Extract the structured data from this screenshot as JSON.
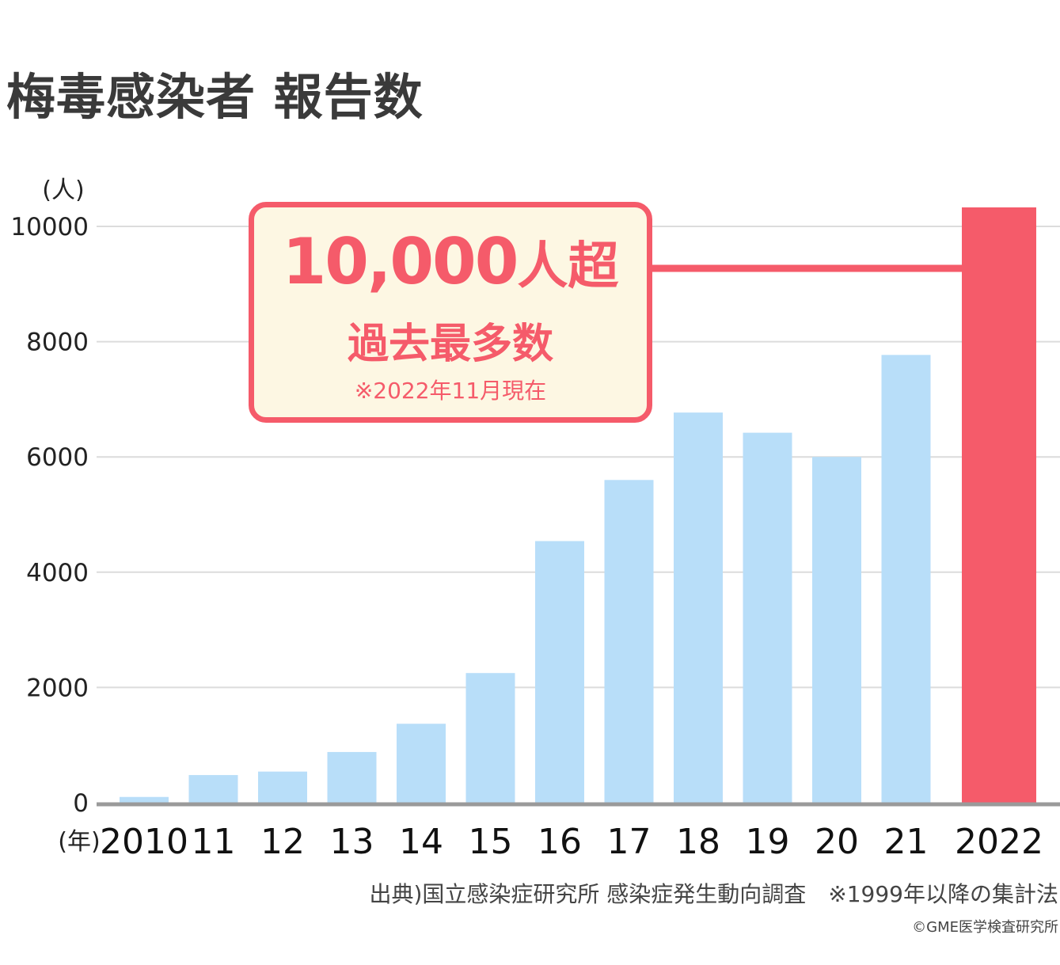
{
  "title": "梅毒感染者 報告数",
  "y_unit_label": "(人)",
  "x_unit_label": "(年)",
  "callout": {
    "main": "10,000",
    "main_suffix": "人超",
    "sub": "過去最多数",
    "note": "※2022年11月現在"
  },
  "source": "出典)国立感染症研究所 感染症発生動向調査　※1999年以降の集計法",
  "copyright": "©GME医学検査研究所",
  "colors": {
    "bar": "#b8def9",
    "highlight": "#f55b6a",
    "callout_bg": "#fdf7e3",
    "grid": "#dcdcdc",
    "axis": "#9a9a9a"
  },
  "chart_data": {
    "type": "bar",
    "title": "梅毒感染者 報告数",
    "xlabel": "(年)",
    "ylabel": "(人)",
    "categories": [
      "2010",
      "11",
      "12",
      "13",
      "14",
      "15",
      "16",
      "17",
      "18",
      "19",
      "20",
      "21",
      "2022"
    ],
    "values": [
      100,
      480,
      540,
      880,
      1370,
      2250,
      4540,
      5600,
      6770,
      6420,
      6000,
      7770,
      10330
    ],
    "highlight_index": 12,
    "yticks": [
      0,
      2000,
      4000,
      6000,
      8000,
      10000
    ],
    "ylim": [
      0,
      10400
    ],
    "grid": true,
    "legend": "none"
  }
}
